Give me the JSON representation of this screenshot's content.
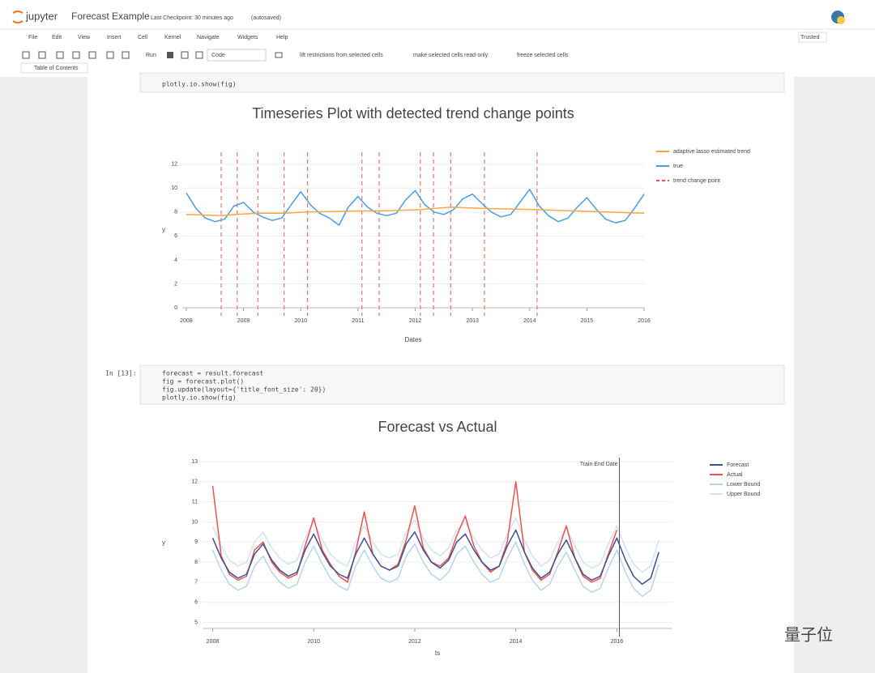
{
  "header": {
    "logo": "jupyter",
    "title": "Forecast Example",
    "checkpoint": "Last Checkpoint: 30 minutes ago",
    "autosave": "(autosaved)",
    "trusted": "Trusted"
  },
  "menu": [
    "File",
    "Edit",
    "View",
    "Insert",
    "Cell",
    "Kernel",
    "Navigate",
    "Widgets",
    "Help"
  ],
  "toolbar": {
    "run": "Run",
    "cell_type": "Code",
    "actions": [
      "lift restrictions from selected cells",
      "make selected cells read-only",
      "freeze selected cells"
    ],
    "toc": "Table of Contents"
  },
  "cells": [
    {
      "code": [
        "plotly.io.show(fig)"
      ]
    },
    {
      "prompt": "In [13]:",
      "code": [
        "forecast = result.forecast",
        "fig = forecast.plot()",
        "fig.update(layout={'title_font_size': 20})",
        "plotly.io.show(fig)"
      ]
    }
  ],
  "watermark": "量子位",
  "chart_data": [
    {
      "type": "line",
      "title": "Timeseries Plot with detected trend change points",
      "x_label": "Dates",
      "y_label": "y",
      "xlim": [
        2007.93,
        2016
      ],
      "xticks": [
        2008,
        2009,
        2010,
        2011,
        2012,
        2013,
        2014,
        2015,
        2016
      ],
      "ylim": [
        0,
        13
      ],
      "yticks": [
        0,
        2,
        4,
        6,
        8,
        10,
        12
      ],
      "grid": true,
      "series": [
        {
          "name": "true",
          "color": "#4a9ee0",
          "x": [
            2008,
            2008.17,
            2008.33,
            2008.5,
            2008.67,
            2008.83,
            2009,
            2009.17,
            2009.33,
            2009.5,
            2009.67,
            2009.83,
            2010,
            2010.17,
            2010.33,
            2010.5,
            2010.67,
            2010.83,
            2011,
            2011.17,
            2011.33,
            2011.5,
            2011.67,
            2011.83,
            2012,
            2012.17,
            2012.33,
            2012.5,
            2012.67,
            2012.83,
            2013,
            2013.17,
            2013.33,
            2013.5,
            2013.67,
            2013.83,
            2014,
            2014.17,
            2014.33,
            2014.5,
            2014.67,
            2014.83,
            2015,
            2015.17,
            2015.33,
            2015.5,
            2015.67,
            2015.83,
            2016
          ],
          "values": [
            9.6,
            8.3,
            7.5,
            7.2,
            7.4,
            8.5,
            8.8,
            8.0,
            7.6,
            7.3,
            7.5,
            8.6,
            9.7,
            8.6,
            7.9,
            7.5,
            6.9,
            8.4,
            9.3,
            8.4,
            7.9,
            7.7,
            7.9,
            9.0,
            9.8,
            8.6,
            8.0,
            7.8,
            8.2,
            9.1,
            9.5,
            8.7,
            8.0,
            7.6,
            7.8,
            8.8,
            9.9,
            8.5,
            7.7,
            7.2,
            7.5,
            8.4,
            9.2,
            8.2,
            7.4,
            7.1,
            7.3,
            8.3,
            9.5
          ]
        },
        {
          "name": "adaptive lasso estimated trend",
          "color": "#f5a742",
          "x": [
            2008,
            2008.61,
            2008.89,
            2009.25,
            2009.71,
            2010.12,
            2011.07,
            2011.37,
            2012.09,
            2012.32,
            2012.62,
            2013.21,
            2014.13,
            2016
          ],
          "values": [
            7.8,
            7.7,
            7.8,
            7.9,
            7.9,
            8.0,
            8.1,
            8.1,
            8.2,
            8.3,
            8.4,
            8.3,
            8.2,
            7.9
          ]
        }
      ],
      "change_points": {
        "name": "trend change point",
        "color": "#e05a4a",
        "x": [
          2008.61,
          2008.89,
          2009.25,
          2009.71,
          2010.12,
          2011.07,
          2011.37,
          2012.09,
          2012.32,
          2012.62,
          2013.21,
          2014.13
        ]
      }
    },
    {
      "type": "line",
      "title": "Forecast vs Actual",
      "x_label": "ts",
      "y_label": "y",
      "xlim": [
        2007.8,
        2017.1
      ],
      "xticks": [
        2008,
        2010,
        2012,
        2014,
        2016
      ],
      "ylim": [
        4.7,
        13.2
      ],
      "yticks": [
        5,
        6,
        7,
        8,
        9,
        10,
        11,
        12,
        13
      ],
      "grid": true,
      "annotation": {
        "text": "Train End Date",
        "x": 2016.05
      },
      "series": [
        {
          "name": "Upper Bound",
          "color": "#cfe3f5",
          "x": [
            2008,
            2008.17,
            2008.33,
            2008.5,
            2008.67,
            2008.83,
            2009,
            2009.17,
            2009.33,
            2009.5,
            2009.67,
            2009.83,
            2010,
            2010.17,
            2010.33,
            2010.5,
            2010.67,
            2010.83,
            2011,
            2011.17,
            2011.33,
            2011.5,
            2011.67,
            2011.83,
            2012,
            2012.17,
            2012.33,
            2012.5,
            2012.67,
            2012.83,
            2013,
            2013.17,
            2013.33,
            2013.5,
            2013.67,
            2013.83,
            2014,
            2014.17,
            2014.33,
            2014.5,
            2014.67,
            2014.83,
            2015,
            2015.17,
            2015.33,
            2015.5,
            2015.67,
            2015.83,
            2016,
            2016.17,
            2016.33,
            2016.5,
            2016.67,
            2016.83
          ],
          "values": [
            9.8,
            8.8,
            8.1,
            7.8,
            8.0,
            9.0,
            9.5,
            8.7,
            8.2,
            7.9,
            8.1,
            9.2,
            10.0,
            9.1,
            8.4,
            8.0,
            7.8,
            9.0,
            9.8,
            9.0,
            8.4,
            8.2,
            8.4,
            9.5,
            10.1,
            9.2,
            8.6,
            8.3,
            8.7,
            9.6,
            10.0,
            9.2,
            8.6,
            8.2,
            8.4,
            9.4,
            10.2,
            9.1,
            8.3,
            7.8,
            8.1,
            9.0,
            9.7,
            8.8,
            8.0,
            7.7,
            7.9,
            8.9,
            9.8,
            8.7,
            7.9,
            7.5,
            7.8,
            9.1
          ]
        },
        {
          "name": "Lower Bound",
          "color": "#b9d3ee",
          "x": [
            2008,
            2008.17,
            2008.33,
            2008.5,
            2008.67,
            2008.83,
            2009,
            2009.17,
            2009.33,
            2009.5,
            2009.67,
            2009.83,
            2010,
            2010.17,
            2010.33,
            2010.5,
            2010.67,
            2010.83,
            2011,
            2011.17,
            2011.33,
            2011.5,
            2011.67,
            2011.83,
            2012,
            2012.17,
            2012.33,
            2012.5,
            2012.67,
            2012.83,
            2013,
            2013.17,
            2013.33,
            2013.5,
            2013.67,
            2013.83,
            2014,
            2014.17,
            2014.33,
            2014.5,
            2014.67,
            2014.83,
            2015,
            2015.17,
            2015.33,
            2015.5,
            2015.67,
            2015.83,
            2016,
            2016.17,
            2016.33,
            2016.5,
            2016.67,
            2016.83
          ],
          "values": [
            8.6,
            7.6,
            6.9,
            6.6,
            6.8,
            7.8,
            8.3,
            7.5,
            7.0,
            6.7,
            6.9,
            8.0,
            8.8,
            7.9,
            7.2,
            6.8,
            6.6,
            7.8,
            8.6,
            7.8,
            7.2,
            7.0,
            7.2,
            8.3,
            8.9,
            8.0,
            7.4,
            7.1,
            7.5,
            8.4,
            8.8,
            8.0,
            7.4,
            7.0,
            7.2,
            8.2,
            9.0,
            7.9,
            7.1,
            6.6,
            6.9,
            7.8,
            8.5,
            7.6,
            6.8,
            6.5,
            6.7,
            7.7,
            8.6,
            7.5,
            6.7,
            6.3,
            6.6,
            7.9
          ]
        },
        {
          "name": "Actual",
          "color": "#ef5350",
          "x": [
            2008,
            2008.17,
            2008.33,
            2008.5,
            2008.67,
            2008.83,
            2009,
            2009.17,
            2009.33,
            2009.5,
            2009.67,
            2009.83,
            2010,
            2010.17,
            2010.33,
            2010.5,
            2010.67,
            2010.83,
            2011,
            2011.17,
            2011.33,
            2011.5,
            2011.67,
            2011.83,
            2012,
            2012.17,
            2012.33,
            2012.5,
            2012.67,
            2012.83,
            2013,
            2013.17,
            2013.33,
            2013.5,
            2013.67,
            2013.83,
            2014,
            2014.17,
            2014.33,
            2014.5,
            2014.67,
            2014.83,
            2015,
            2015.17,
            2015.33,
            2015.5,
            2015.67,
            2015.83,
            2016
          ],
          "values": [
            11.8,
            8.3,
            7.4,
            7.1,
            7.3,
            8.6,
            9.0,
            8.0,
            7.5,
            7.2,
            7.4,
            8.8,
            10.2,
            8.6,
            7.9,
            7.3,
            7.0,
            8.5,
            10.5,
            8.4,
            7.8,
            7.6,
            7.9,
            9.1,
            10.8,
            8.7,
            8.0,
            7.8,
            8.2,
            9.3,
            10.3,
            8.8,
            8.0,
            7.5,
            7.8,
            9.0,
            12.0,
            8.5,
            7.6,
            7.1,
            7.4,
            8.5,
            9.8,
            8.2,
            7.3,
            7.0,
            7.2,
            8.4,
            9.6
          ]
        },
        {
          "name": "Forecast",
          "color": "#3d4f8f",
          "x": [
            2008,
            2008.17,
            2008.33,
            2008.5,
            2008.67,
            2008.83,
            2009,
            2009.17,
            2009.33,
            2009.5,
            2009.67,
            2009.83,
            2010,
            2010.17,
            2010.33,
            2010.5,
            2010.67,
            2010.83,
            2011,
            2011.17,
            2011.33,
            2011.5,
            2011.67,
            2011.83,
            2012,
            2012.17,
            2012.33,
            2012.5,
            2012.67,
            2012.83,
            2013,
            2013.17,
            2013.33,
            2013.5,
            2013.67,
            2013.83,
            2014,
            2014.17,
            2014.33,
            2014.5,
            2014.67,
            2014.83,
            2015,
            2015.17,
            2015.33,
            2015.5,
            2015.67,
            2015.83,
            2016,
            2016.17,
            2016.33,
            2016.5,
            2016.67,
            2016.83
          ],
          "values": [
            9.2,
            8.2,
            7.5,
            7.2,
            7.4,
            8.4,
            8.9,
            8.1,
            7.6,
            7.3,
            7.5,
            8.6,
            9.4,
            8.5,
            7.8,
            7.4,
            7.2,
            8.4,
            9.2,
            8.4,
            7.8,
            7.6,
            7.8,
            8.9,
            9.5,
            8.6,
            8.0,
            7.7,
            8.1,
            9.0,
            9.4,
            8.6,
            8.0,
            7.6,
            7.8,
            8.8,
            9.6,
            8.5,
            7.7,
            7.2,
            7.5,
            8.4,
            9.1,
            8.2,
            7.4,
            7.1,
            7.3,
            8.3,
            9.2,
            8.1,
            7.3,
            6.9,
            7.2,
            8.5
          ]
        }
      ]
    }
  ]
}
